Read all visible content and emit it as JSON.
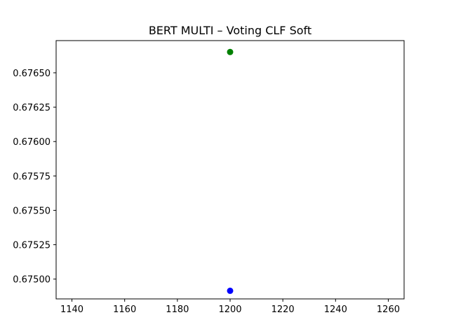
{
  "chart_data": {
    "type": "scatter",
    "title": "BERT MULTI – Voting CLF Soft",
    "xlabel": "",
    "ylabel": "",
    "xlim": [
      1134,
      1266
    ],
    "ylim": [
      0.674856,
      0.676734
    ],
    "x_ticks": [
      1140,
      1160,
      1180,
      1200,
      1220,
      1240,
      1260
    ],
    "y_ticks": [
      0.675,
      0.67525,
      0.6755,
      0.67575,
      0.676,
      0.67625,
      0.6765
    ],
    "x_tick_labels": [
      "1140",
      "1160",
      "1180",
      "1200",
      "1220",
      "1240",
      "1260"
    ],
    "y_tick_labels": [
      "0.67500",
      "0.67525",
      "0.67550",
      "0.67575",
      "0.67600",
      "0.67625",
      "0.67650"
    ],
    "grid": false,
    "legend": "none",
    "series": [
      {
        "color": "#008000",
        "points": [
          {
            "x": 1200,
            "y": 0.676651
          }
        ]
      },
      {
        "color": "#0000ff",
        "points": [
          {
            "x": 1200,
            "y": 0.674915
          }
        ]
      }
    ]
  }
}
